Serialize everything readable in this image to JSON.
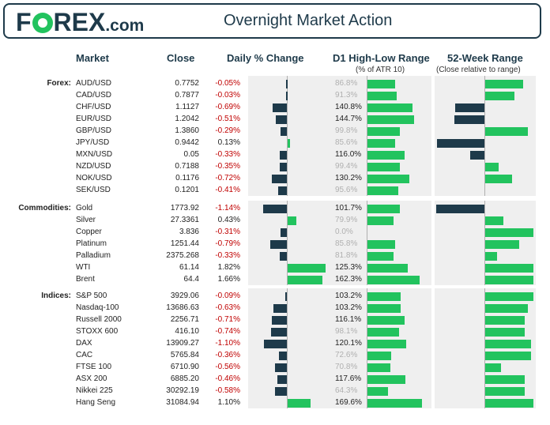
{
  "header": {
    "logo": "F",
    "logo_rest": "REX",
    "logo_suffix": ".com",
    "title": "Overnight Market Action"
  },
  "columns": {
    "market": "Market",
    "close": "Close",
    "daily": "Daily % Change",
    "range": "D1 High-Low Range",
    "range_sub": "(% of ATR 10)",
    "week52": "52-Week Range",
    "week52_sub": "(Close relative to range)"
  },
  "colors": {
    "positive": "#22c35e",
    "negative": "#1e3a4a",
    "neg_text": "#c00000",
    "dim_text": "#b0b0b0"
  },
  "chart_data": {
    "type": "table",
    "title": "Overnight Market Action",
    "sections": [
      {
        "label": "Forex:",
        "rows": [
          {
            "name": "AUD/USD",
            "close": "0.7752",
            "change": "-0.05%",
            "change_value": -0.05,
            "range": "86.8%",
            "range_value": 86.8,
            "w52": 0.78
          },
          {
            "name": "CAD/USD",
            "close": "0.7877",
            "change": "-0.03%",
            "change_value": -0.03,
            "range": "91.3%",
            "range_value": 91.3,
            "w52": 0.6
          },
          {
            "name": "CHF/USD",
            "close": "1.1127",
            "change": "-0.69%",
            "change_value": -0.69,
            "range": "140.8%",
            "range_value": 140.8,
            "w52": -0.6
          },
          {
            "name": "EUR/USD",
            "close": "1.2042",
            "change": "-0.51%",
            "change_value": -0.51,
            "range": "144.7%",
            "range_value": 144.7,
            "w52": -0.62
          },
          {
            "name": "GBP/USD",
            "close": "1.3860",
            "change": "-0.29%",
            "change_value": -0.29,
            "range": "99.8%",
            "range_value": 99.8,
            "w52": 0.88
          },
          {
            "name": "JPY/USD",
            "close": "0.9442",
            "change": "0.13%",
            "change_value": 0.13,
            "range": "85.6%",
            "range_value": 85.6,
            "w52": -0.98
          },
          {
            "name": "MXN/USD",
            "close": "0.05",
            "change": "-0.33%",
            "change_value": -0.33,
            "range": "116.0%",
            "range_value": 116.0,
            "w52": -0.3
          },
          {
            "name": "NZD/USD",
            "close": "0.7188",
            "change": "-0.35%",
            "change_value": -0.35,
            "range": "99.4%",
            "range_value": 99.4,
            "w52": 0.28
          },
          {
            "name": "NOK/USD",
            "close": "0.1176",
            "change": "-0.72%",
            "change_value": -0.72,
            "range": "130.2%",
            "range_value": 130.2,
            "w52": 0.55
          },
          {
            "name": "SEK/USD",
            "close": "0.1201",
            "change": "-0.41%",
            "change_value": -0.41,
            "range": "95.6%",
            "range_value": 95.6,
            "w52": 0.0
          }
        ]
      },
      {
        "label": "Commodities:",
        "rows": [
          {
            "name": "Gold",
            "close": "1773.92",
            "change": "-1.14%",
            "change_value": -1.14,
            "range": "101.7%",
            "range_value": 101.7,
            "w52": -1.0
          },
          {
            "name": "Silver",
            "close": "27.3361",
            "change": "0.43%",
            "change_value": 0.43,
            "range": "79.9%",
            "range_value": 79.9,
            "w52": 0.38
          },
          {
            "name": "Copper",
            "close": "3.836",
            "change": "-0.31%",
            "change_value": -0.31,
            "range": "0.0%",
            "range_value": 0.0,
            "w52": 1.0
          },
          {
            "name": "Platinum",
            "close": "1251.44",
            "change": "-0.79%",
            "change_value": -0.79,
            "range": "85.8%",
            "range_value": 85.8,
            "w52": 0.7
          },
          {
            "name": "Palladium",
            "close": "2375.268",
            "change": "-0.33%",
            "change_value": -0.33,
            "range": "81.8%",
            "range_value": 81.8,
            "w52": 0.25
          },
          {
            "name": "WTI",
            "close": "61.14",
            "change": "1.82%",
            "change_value": 1.82,
            "range": "125.3%",
            "range_value": 125.3,
            "w52": 1.0
          },
          {
            "name": "Brent",
            "close": "64.4",
            "change": "1.66%",
            "change_value": 1.66,
            "range": "162.3%",
            "range_value": 162.3,
            "w52": 1.0
          }
        ]
      },
      {
        "label": "Indices:",
        "rows": [
          {
            "name": "S&P 500",
            "close": "3929.06",
            "change": "-0.09%",
            "change_value": -0.09,
            "range": "103.2%",
            "range_value": 103.2,
            "w52": 1.0
          },
          {
            "name": "Nasdaq-100",
            "close": "13686.63",
            "change": "-0.63%",
            "change_value": -0.63,
            "range": "103.2%",
            "range_value": 103.2,
            "w52": 0.88
          },
          {
            "name": "Russell 2000",
            "close": "2256.71",
            "change": "-0.71%",
            "change_value": -0.71,
            "range": "116.1%",
            "range_value": 116.1,
            "w52": 0.82
          },
          {
            "name": "STOXX 600",
            "close": "416.10",
            "change": "-0.74%",
            "change_value": -0.74,
            "range": "98.1%",
            "range_value": 98.1,
            "w52": 0.82
          },
          {
            "name": "DAX",
            "close": "13909.27",
            "change": "-1.10%",
            "change_value": -1.1,
            "range": "120.1%",
            "range_value": 120.1,
            "w52": 0.95
          },
          {
            "name": "CAC",
            "close": "5765.84",
            "change": "-0.36%",
            "change_value": -0.36,
            "range": "72.6%",
            "range_value": 72.6,
            "w52": 0.95
          },
          {
            "name": "FTSE 100",
            "close": "6710.90",
            "change": "-0.56%",
            "change_value": -0.56,
            "range": "70.8%",
            "range_value": 70.8,
            "w52": 0.32
          },
          {
            "name": "ASX 200",
            "close": "6885.20",
            "change": "-0.46%",
            "change_value": -0.46,
            "range": "117.6%",
            "range_value": 117.6,
            "w52": 0.82
          },
          {
            "name": "Nikkei 225",
            "close": "30292.19",
            "change": "-0.58%",
            "change_value": -0.58,
            "range": "64.3%",
            "range_value": 64.3,
            "w52": 0.82
          },
          {
            "name": "Hang Seng",
            "close": "31084.94",
            "change": "1.10%",
            "change_value": 1.1,
            "range": "169.6%",
            "range_value": 169.6,
            "w52": 1.0
          }
        ]
      }
    ]
  }
}
